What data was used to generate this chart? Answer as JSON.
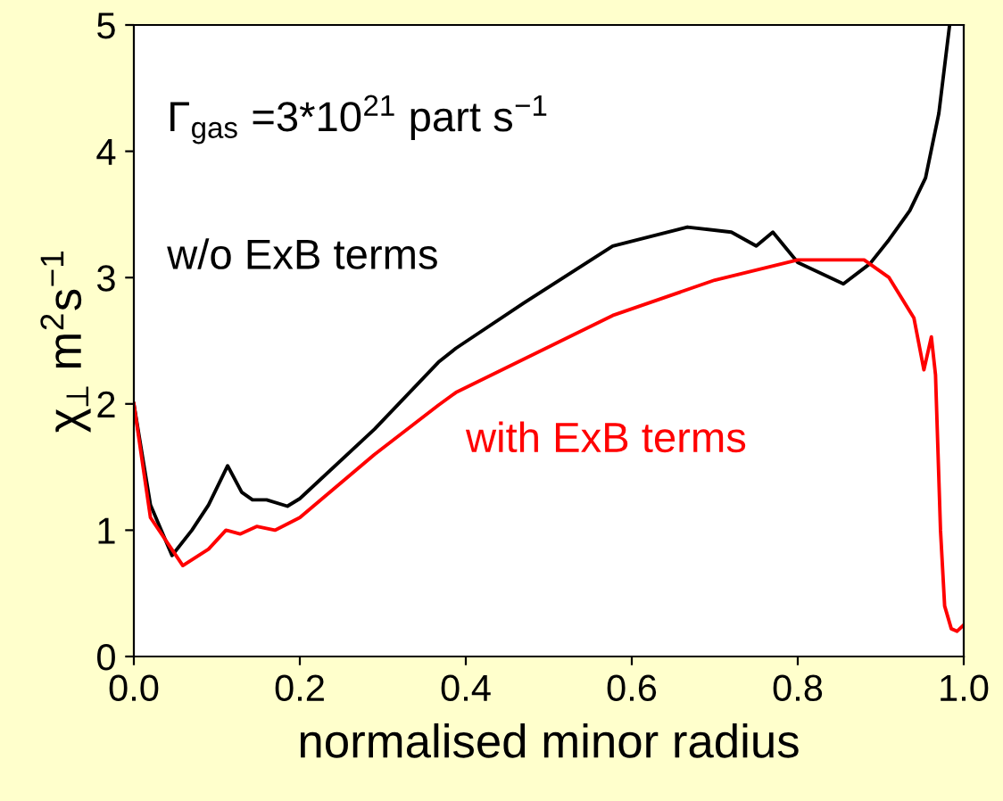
{
  "chart_data": {
    "type": "line",
    "xlabel": "normalised minor radius",
    "ylabel": "χ$_{⊥}$ m$^{2}$s$^{−1}$",
    "annotations": [
      "Γ$_{gas}$ =3*10$^{21}$ part s$^{−1}$"
    ],
    "xlim": [
      0,
      1
    ],
    "ylim": [
      0,
      5
    ],
    "xticks": [
      {
        "value": 0,
        "label": "0.0"
      },
      {
        "value": 0.2,
        "label": "0.2"
      },
      {
        "value": 0.4,
        "label": "0.4"
      },
      {
        "value": 0.6,
        "label": "0.6"
      },
      {
        "value": 0.8,
        "label": "0.8"
      },
      {
        "value": 1,
        "label": "1.0"
      }
    ],
    "yticks": [
      0,
      1,
      2,
      3,
      4,
      5
    ],
    "grid": false,
    "legend": false,
    "marker": "none",
    "line_style": "solid",
    "series": [
      {
        "name": "w/o ExB terms",
        "color": "#000000",
        "x": [
          0,
          0.02,
          0.046,
          0.07,
          0.09,
          0.113,
          0.13,
          0.143,
          0.16,
          0.185,
          0.2,
          0.29,
          0.367,
          0.388,
          0.47,
          0.577,
          0.667,
          0.72,
          0.75,
          0.77,
          0.8,
          0.855,
          0.887,
          0.91,
          0.935,
          0.954,
          0.97,
          0.983
        ],
        "values": [
          2,
          1.2,
          0.8,
          1.0,
          1.2,
          1.51,
          1.3,
          1.24,
          1.24,
          1.19,
          1.25,
          1.8,
          2.33,
          2.44,
          2.8,
          3.25,
          3.4,
          3.36,
          3.25,
          3.36,
          3.12,
          2.95,
          3.11,
          3.3,
          3.53,
          3.79,
          4.3,
          5
        ]
      },
      {
        "name": "with ExB terms",
        "color": "#ff0000",
        "x": [
          0,
          0.02,
          0.059,
          0.09,
          0.111,
          0.128,
          0.148,
          0.17,
          0.2,
          0.29,
          0.367,
          0.388,
          0.577,
          0.7,
          0.8,
          0.88,
          0.91,
          0.94,
          0.952,
          0.961,
          0.966,
          0.972,
          0.977,
          0.985,
          0.992,
          1.0
        ],
        "values": [
          2,
          1.1,
          0.72,
          0.85,
          1.0,
          0.97,
          1.03,
          1.0,
          1.1,
          1.6,
          1.99,
          2.09,
          2.7,
          2.98,
          3.14,
          3.14,
          3.0,
          2.68,
          2.27,
          2.53,
          2.23,
          1.0,
          0.4,
          0.22,
          0.2,
          0.25
        ]
      }
    ]
  }
}
